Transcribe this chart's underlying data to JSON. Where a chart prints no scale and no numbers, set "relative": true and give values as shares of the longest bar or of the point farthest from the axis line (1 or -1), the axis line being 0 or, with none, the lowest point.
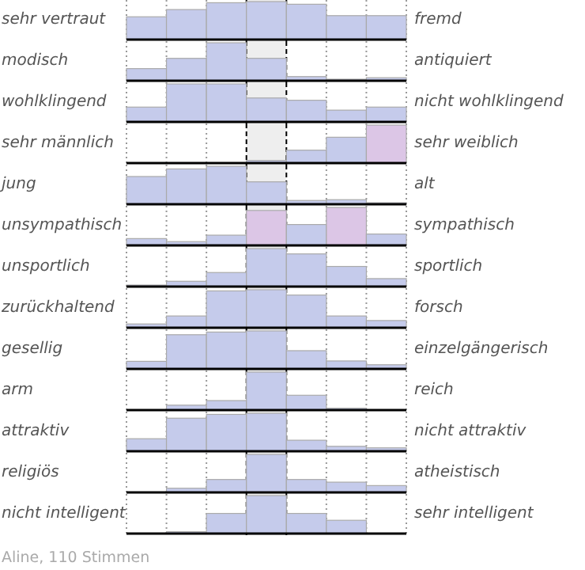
{
  "chart_data": [
    {
      "type": "bar",
      "relative": true,
      "grid": "x",
      "ylabel": "sehr vertraut",
      "y2label": "fremd",
      "categories": [
        null,
        null,
        null,
        null,
        null,
        null,
        null
      ],
      "values": [
        0.6,
        0.79,
        0.97,
        1,
        0.93,
        0.63,
        0.63
      ],
      "colors": [
        "#c5cbeb",
        "#c5cbeb",
        "#c5cbeb",
        "#c5cbeb",
        "#c5cbeb",
        "#c5cbeb",
        "#c5cbeb"
      ]
    },
    {
      "type": "bar",
      "relative": true,
      "grid": "x",
      "ylabel": "modisch",
      "y2label": "antiquiert",
      "categories": [
        null,
        null,
        null,
        null,
        null,
        null,
        null
      ],
      "values": [
        0.32,
        0.59,
        1,
        0.59,
        0.11,
        0.04,
        0.08
      ],
      "colors": [
        "#c5cbeb",
        "#c5cbeb",
        "#c5cbeb",
        "#c5cbeb",
        "#c5cbeb",
        "#c5cbeb",
        "#c5cbeb"
      ]
    },
    {
      "type": "bar",
      "relative": true,
      "grid": "x",
      "ylabel": "wohlklingend",
      "y2label": "nicht wohlklingend",
      "categories": [
        null,
        null,
        null,
        null,
        null,
        null,
        null
      ],
      "values": [
        0.39,
        1,
        1,
        0.63,
        0.57,
        0.31,
        0.39
      ],
      "colors": [
        "#c5cbeb",
        "#c5cbeb",
        "#c5cbeb",
        "#c5cbeb",
        "#c5cbeb",
        "#c5cbeb",
        "#c5cbeb"
      ]
    },
    {
      "type": "bar",
      "relative": true,
      "grid": "x",
      "ylabel": "sehr männlich",
      "y2label": "sehr weiblich",
      "categories": [
        null,
        null,
        null,
        null,
        null,
        null,
        null
      ],
      "values": [
        0,
        0,
        0,
        0.07,
        0.34,
        0.68,
        1
      ],
      "colors": [
        "#c5cbeb",
        "#c5cbeb",
        "#c5cbeb",
        "#c5cbeb",
        "#c5cbeb",
        "#c5cbeb",
        "#dcc6e6"
      ]
    },
    {
      "type": "bar",
      "relative": true,
      "grid": "x",
      "ylabel": "jung",
      "y2label": "alt",
      "categories": [
        null,
        null,
        null,
        null,
        null,
        null,
        null
      ],
      "values": [
        0.73,
        0.93,
        1,
        0.59,
        0.1,
        0.12,
        0.04
      ],
      "colors": [
        "#c5cbeb",
        "#c5cbeb",
        "#c5cbeb",
        "#c5cbeb",
        "#c5cbeb",
        "#c5cbeb",
        "#c5cbeb"
      ]
    },
    {
      "type": "bar",
      "relative": true,
      "grid": "x",
      "ylabel": "unsympathisch",
      "y2label": "sympathisch",
      "categories": [
        null,
        null,
        null,
        null,
        null,
        null,
        null
      ],
      "values": [
        0.18,
        0.1,
        0.27,
        0.92,
        0.55,
        1,
        0.3
      ],
      "colors": [
        "#c5cbeb",
        "#c5cbeb",
        "#c5cbeb",
        "#dcc6e6",
        "#c5cbeb",
        "#dcc6e6",
        "#c5cbeb"
      ]
    },
    {
      "type": "bar",
      "relative": true,
      "grid": "x",
      "ylabel": "unsportlich",
      "y2label": "sportlich",
      "categories": [
        null,
        null,
        null,
        null,
        null,
        null,
        null
      ],
      "values": [
        0.04,
        0.14,
        0.37,
        1,
        0.86,
        0.53,
        0.21
      ],
      "colors": [
        "#c5cbeb",
        "#c5cbeb",
        "#c5cbeb",
        "#c5cbeb",
        "#c5cbeb",
        "#c5cbeb",
        "#c5cbeb"
      ]
    },
    {
      "type": "bar",
      "relative": true,
      "grid": "x",
      "ylabel": "zurückhaltend",
      "y2label": "forsch",
      "categories": [
        null,
        null,
        null,
        null,
        null,
        null,
        null
      ],
      "values": [
        0.1,
        0.31,
        0.97,
        1,
        0.86,
        0.31,
        0.19
      ],
      "colors": [
        "#c5cbeb",
        "#c5cbeb",
        "#c5cbeb",
        "#c5cbeb",
        "#c5cbeb",
        "#c5cbeb",
        "#c5cbeb"
      ]
    },
    {
      "type": "bar",
      "relative": true,
      "grid": "x",
      "ylabel": "gesellig",
      "y2label": "einzelgängerisch",
      "categories": [
        null,
        null,
        null,
        null,
        null,
        null,
        null
      ],
      "values": [
        0.2,
        0.9,
        0.97,
        1,
        0.48,
        0.21,
        0.11
      ],
      "colors": [
        "#c5cbeb",
        "#c5cbeb",
        "#c5cbeb",
        "#c5cbeb",
        "#c5cbeb",
        "#c5cbeb",
        "#c5cbeb"
      ]
    },
    {
      "type": "bar",
      "relative": true,
      "grid": "x",
      "ylabel": "arm",
      "y2label": "reich",
      "categories": [
        null,
        null,
        null,
        null,
        null,
        null,
        null
      ],
      "values": [
        0,
        0.13,
        0.25,
        1,
        0.39,
        0.05,
        0
      ],
      "colors": [
        "#c5cbeb",
        "#c5cbeb",
        "#c5cbeb",
        "#c5cbeb",
        "#c5cbeb",
        "#c5cbeb",
        "#c5cbeb"
      ]
    },
    {
      "type": "bar",
      "relative": true,
      "grid": "x",
      "ylabel": "attraktiv",
      "y2label": "nicht attraktiv",
      "categories": [
        null,
        null,
        null,
        null,
        null,
        null,
        null
      ],
      "values": [
        0.33,
        0.87,
        0.97,
        1,
        0.29,
        0.13,
        0.09
      ],
      "colors": [
        "#c5cbeb",
        "#c5cbeb",
        "#c5cbeb",
        "#c5cbeb",
        "#c5cbeb",
        "#c5cbeb",
        "#c5cbeb"
      ]
    },
    {
      "type": "bar",
      "relative": true,
      "grid": "x",
      "ylabel": "religiös",
      "y2label": "atheistisch",
      "categories": [
        null,
        null,
        null,
        null,
        null,
        null,
        null
      ],
      "values": [
        0,
        0.11,
        0.34,
        1,
        0.34,
        0.27,
        0.18
      ],
      "colors": [
        "#c5cbeb",
        "#c5cbeb",
        "#c5cbeb",
        "#c5cbeb",
        "#c5cbeb",
        "#c5cbeb",
        "#c5cbeb"
      ]
    },
    {
      "type": "bar",
      "relative": true,
      "grid": "x",
      "ylabel": "nicht intelligent",
      "y2label": "sehr intelligent",
      "categories": [
        null,
        null,
        null,
        null,
        null,
        null,
        null
      ],
      "values": [
        0,
        0.05,
        0.53,
        1,
        0.53,
        0.35,
        0
      ],
      "colors": [
        "#c5cbeb",
        "#c5cbeb",
        "#c5cbeb",
        "#c5cbeb",
        "#c5cbeb",
        "#c5cbeb",
        "#c5cbeb"
      ],
      "annotations": [
        "Aline, 110 Stimmen"
      ]
    }
  ]
}
